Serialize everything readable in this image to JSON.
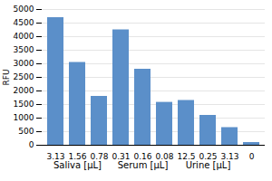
{
  "chart_data": {
    "type": "bar",
    "categories": [
      "3.13",
      "1.56",
      "0.78",
      "0.31",
      "0.16",
      "0.08",
      "12.5",
      "0.25",
      "3.13",
      "0"
    ],
    "values": [
      4700,
      3050,
      1800,
      4250,
      2800,
      1580,
      1650,
      1100,
      650,
      100
    ],
    "groups": [
      "Saliva [µL]",
      "Saliva [µL]",
      "Saliva [µL]",
      "Serum [µL]",
      "Serum [µL]",
      "Serum [µL]",
      "Urine [µL]",
      "Urine [µL]",
      "Urine [µL]",
      null
    ],
    "color": "#5b8fc9",
    "ylabel": "RFU",
    "ylim": [
      0,
      5000
    ],
    "yticks": [
      0,
      500,
      1000,
      1500,
      2000,
      2500,
      3000,
      3500,
      4000,
      4500,
      5000
    ],
    "grid": true
  }
}
